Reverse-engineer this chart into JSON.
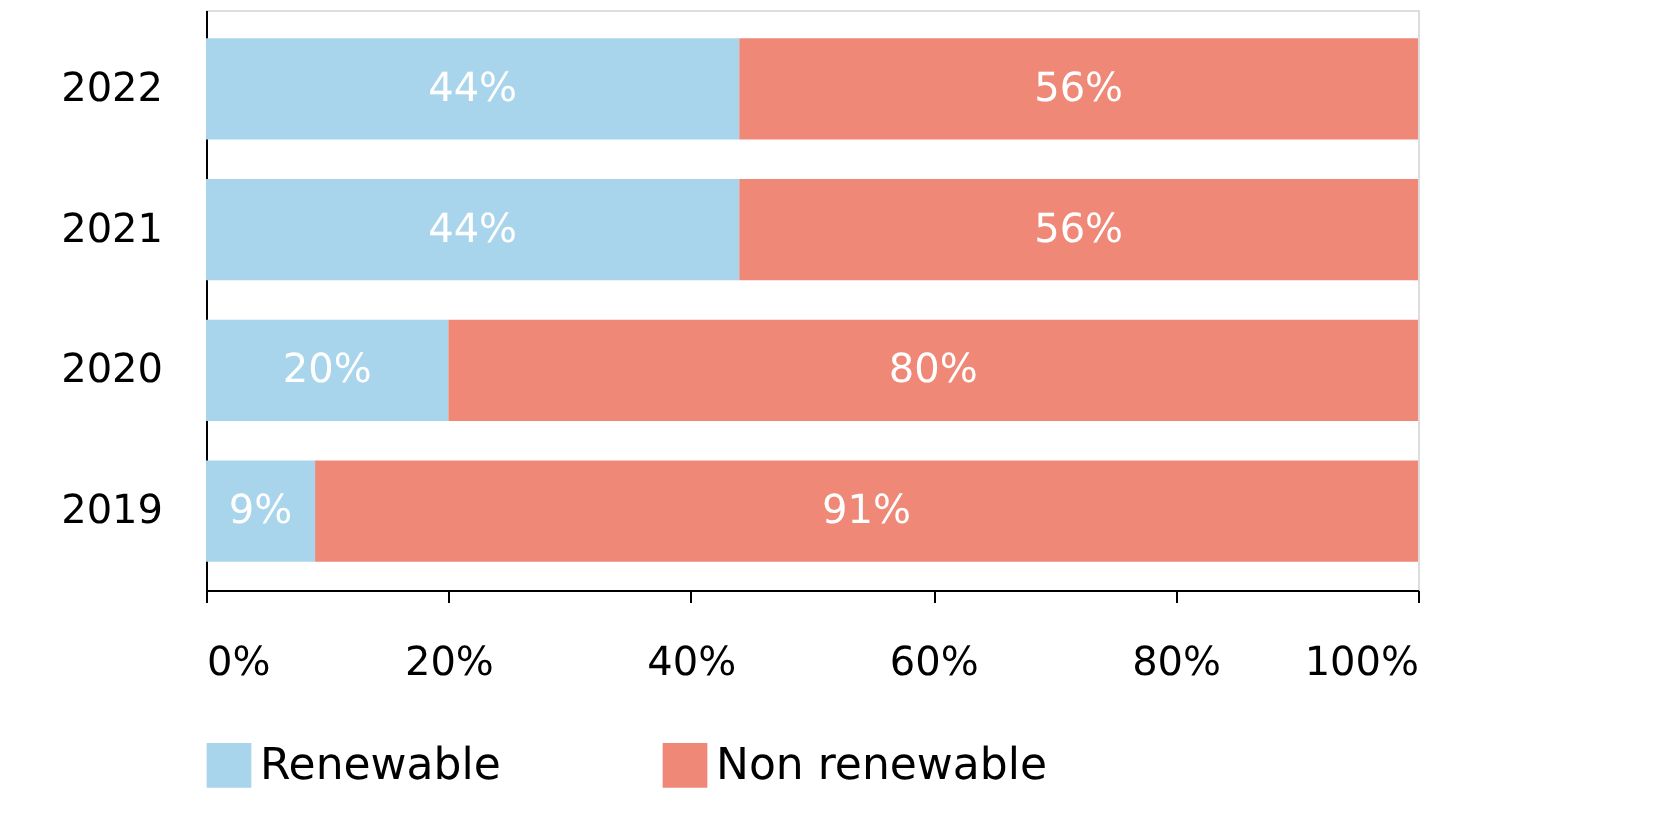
{
  "chart_data": {
    "type": "bar",
    "orientation": "horizontal",
    "stacked": true,
    "categories": [
      "2022",
      "2021",
      "2020",
      "2019"
    ],
    "series": [
      {
        "name": "Renewable",
        "color": "#a9d5ec",
        "values": [
          44,
          44,
          20,
          9
        ],
        "value_labels": [
          "44%",
          "44%",
          "20%",
          "9%"
        ]
      },
      {
        "name": "Non renewable",
        "color": "#f08878",
        "values": [
          56,
          56,
          80,
          91
        ],
        "value_labels": [
          "56%",
          "56%",
          "80%",
          "91%"
        ]
      }
    ],
    "xlim": [
      0,
      100
    ],
    "xticks": [
      {
        "value": 0,
        "label": "0%"
      },
      {
        "value": 20,
        "label": "20%"
      },
      {
        "value": 40,
        "label": "40%"
      },
      {
        "value": 60,
        "label": "60%"
      },
      {
        "value": 80,
        "label": "80%"
      },
      {
        "value": 100,
        "label": "100%"
      }
    ],
    "grid": false,
    "legend": "bottom"
  }
}
